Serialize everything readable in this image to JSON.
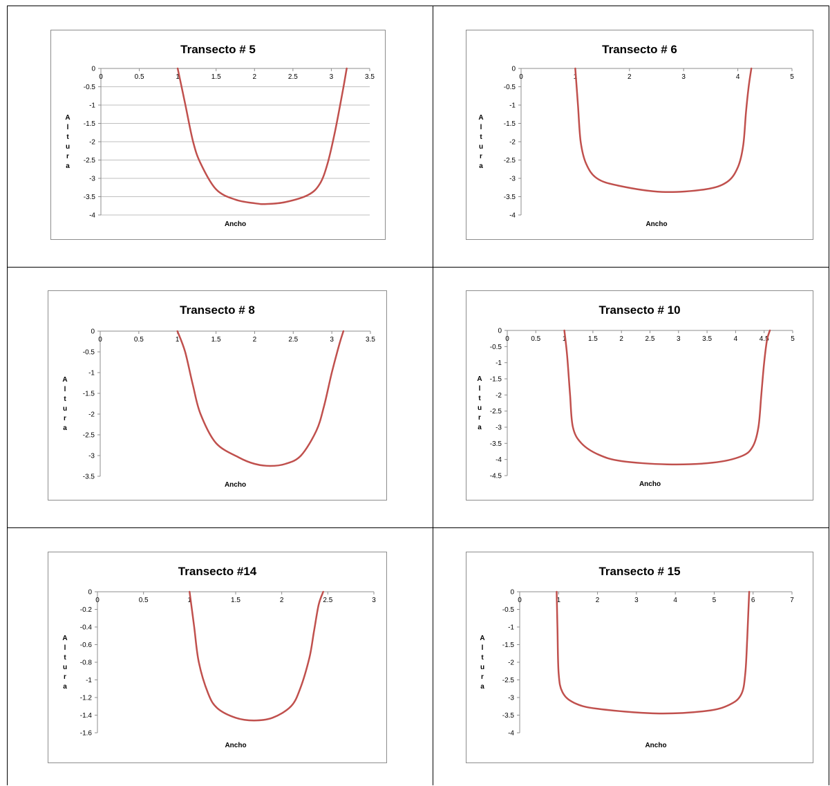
{
  "chart_data": [
    {
      "type": "line",
      "title": "Transecto # 5",
      "xlabel": "Ancho",
      "ylabel": "Altura",
      "xlim": [
        0,
        3.5
      ],
      "ylim": [
        -4,
        0
      ],
      "xticks": [
        "0",
        "0.5",
        "1",
        "1.5",
        "2",
        "2.5",
        "3",
        "3.5"
      ],
      "yticks": [
        "0",
        "-0.5",
        "-1",
        "-1.5",
        "-2",
        "-2.5",
        "-3",
        "-3.5",
        "-4"
      ],
      "grid": true,
      "series": [
        {
          "color": "#c0504d",
          "x": [
            1.0,
            1.1,
            1.2,
            1.3,
            1.5,
            1.75,
            2.0,
            2.15,
            2.4,
            2.7,
            2.85,
            2.95,
            3.05,
            3.15,
            3.2
          ],
          "y": [
            0,
            -1.0,
            -2.0,
            -2.6,
            -3.3,
            -3.58,
            -3.68,
            -3.7,
            -3.65,
            -3.45,
            -3.15,
            -2.6,
            -1.7,
            -0.6,
            0
          ]
        }
      ]
    },
    {
      "type": "line",
      "title": "Transecto # 6",
      "xlabel": "Ancho",
      "ylabel": "Altura",
      "xlim": [
        0,
        5
      ],
      "ylim": [
        -4,
        0
      ],
      "xticks": [
        "0",
        "1",
        "2",
        "3",
        "4",
        "5"
      ],
      "yticks": [
        "0",
        "-0.5",
        "-1",
        "-1.5",
        "-2",
        "-2.5",
        "-3",
        "-3.5",
        "-4"
      ],
      "grid": false,
      "series": [
        {
          "color": "#c0504d",
          "x": [
            1.0,
            1.05,
            1.1,
            1.2,
            1.4,
            1.8,
            2.6,
            3.4,
            3.8,
            4.0,
            4.1,
            4.15,
            4.2,
            4.25
          ],
          "y": [
            0,
            -1.0,
            -2.0,
            -2.6,
            -3.0,
            -3.2,
            -3.37,
            -3.3,
            -3.1,
            -2.7,
            -2.1,
            -1.2,
            -0.5,
            0
          ]
        }
      ]
    },
    {
      "type": "line",
      "title": "Transecto # 8",
      "xlabel": "Ancho",
      "ylabel": "Altura",
      "xlim": [
        0,
        3.5
      ],
      "ylim": [
        -3.5,
        0
      ],
      "xticks": [
        "0",
        "0.5",
        "1",
        "1.5",
        "2",
        "2.5",
        "3",
        "3.5"
      ],
      "yticks": [
        "0",
        "-0.5",
        "-1",
        "-1.5",
        "-2",
        "-2.5",
        "-3",
        "-3.5"
      ],
      "grid": false,
      "series": [
        {
          "color": "#c0504d",
          "x": [
            1.0,
            1.1,
            1.2,
            1.3,
            1.5,
            1.8,
            2.0,
            2.2,
            2.4,
            2.6,
            2.8,
            2.9,
            3.0,
            3.1,
            3.15
          ],
          "y": [
            0,
            -0.5,
            -1.3,
            -2.0,
            -2.7,
            -3.05,
            -3.2,
            -3.25,
            -3.2,
            -3.0,
            -2.4,
            -1.8,
            -1.0,
            -0.3,
            0
          ]
        }
      ]
    },
    {
      "type": "line",
      "title": "Transecto # 10",
      "xlabel": "Ancho",
      "ylabel": "Altura",
      "xlim": [
        0,
        5
      ],
      "ylim": [
        -4.5,
        0
      ],
      "xticks": [
        "0",
        "0.5",
        "1",
        "1.5",
        "2",
        "2.5",
        "3",
        "3.5",
        "4",
        "4.5",
        "5"
      ],
      "yticks": [
        "0",
        "-0.5",
        "-1",
        "-1.5",
        "-2",
        "-2.5",
        "-3",
        "-3.5",
        "-4",
        "-4.5"
      ],
      "grid": false,
      "series": [
        {
          "color": "#c0504d",
          "x": [
            1.0,
            1.05,
            1.1,
            1.15,
            1.3,
            1.6,
            2.0,
            2.8,
            3.6,
            4.1,
            4.3,
            4.4,
            4.45,
            4.5,
            4.55,
            4.6
          ],
          "y": [
            0,
            -0.8,
            -2.0,
            -3.0,
            -3.5,
            -3.85,
            -4.05,
            -4.15,
            -4.1,
            -3.9,
            -3.6,
            -3.0,
            -2.0,
            -1.0,
            -0.3,
            0
          ]
        }
      ]
    },
    {
      "type": "line",
      "title": "Transecto #14",
      "xlabel": "Ancho",
      "ylabel": "Altura",
      "xlim": [
        0,
        3
      ],
      "ylim": [
        -1.6,
        0
      ],
      "xticks": [
        "0",
        "0.5",
        "1",
        "1.5",
        "2",
        "2.5",
        "3"
      ],
      "yticks": [
        "0",
        "-0.2",
        "-0.4",
        "-0.6",
        "-0.8",
        "-1",
        "-1.2",
        "-1.4",
        "-1.6"
      ],
      "grid": false,
      "series": [
        {
          "color": "#c0504d",
          "x": [
            1.0,
            1.05,
            1.1,
            1.2,
            1.3,
            1.5,
            1.7,
            1.9,
            2.1,
            2.2,
            2.3,
            2.35,
            2.4,
            2.45
          ],
          "y": [
            0,
            -0.4,
            -0.8,
            -1.15,
            -1.32,
            -1.43,
            -1.46,
            -1.43,
            -1.3,
            -1.1,
            -0.75,
            -0.45,
            -0.15,
            0
          ]
        }
      ]
    },
    {
      "type": "line",
      "title": "Transecto # 15",
      "xlabel": "Ancho",
      "ylabel": "Altura",
      "xlim": [
        0,
        7
      ],
      "ylim": [
        -4,
        0
      ],
      "xticks": [
        "0",
        "1",
        "2",
        "3",
        "4",
        "5",
        "6",
        "7"
      ],
      "yticks": [
        "0",
        "-0.5",
        "-1",
        "-1.5",
        "-2",
        "-2.5",
        "-3",
        "-3.5",
        "-4"
      ],
      "grid": false,
      "series": [
        {
          "color": "#c0504d",
          "x": [
            0.95,
            0.97,
            1.0,
            1.1,
            1.4,
            2.0,
            3.5,
            4.8,
            5.4,
            5.7,
            5.8,
            5.85,
            5.88,
            5.9
          ],
          "y": [
            0,
            -1.0,
            -2.3,
            -2.85,
            -3.15,
            -3.32,
            -3.45,
            -3.38,
            -3.2,
            -2.9,
            -2.3,
            -1.3,
            -0.5,
            0
          ]
        }
      ]
    }
  ]
}
